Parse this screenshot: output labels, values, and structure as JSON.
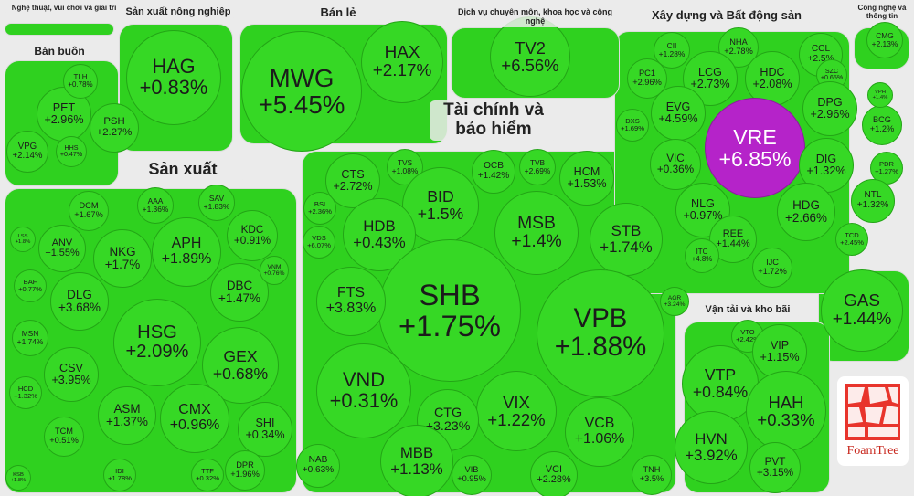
{
  "groups": [
    {
      "name": "Nghệ thuật, vui chơi và giải trí",
      "cells": []
    },
    {
      "name": "Sản xuất nông nghiệp",
      "cells": [
        {
          "ticker": "HAG",
          "change": "+0.83%"
        }
      ]
    },
    {
      "name": "Bán lẻ",
      "cells": [
        {
          "ticker": "MWG",
          "change": "+5.45%"
        },
        {
          "ticker": "HAX",
          "change": "+2.17%"
        }
      ]
    },
    {
      "name": "Dịch vụ chuyên môn, khoa học và công nghệ",
      "cells": [
        {
          "ticker": "TV2",
          "change": "+6.56%"
        }
      ]
    },
    {
      "name": "Xây dựng và Bất động sản",
      "cells": [
        {
          "ticker": "CII",
          "change": "+1.28%"
        },
        {
          "ticker": "NHA",
          "change": "+2.78%"
        },
        {
          "ticker": "PC1",
          "change": "+2.96%"
        },
        {
          "ticker": "LCG",
          "change": "+2.73%"
        },
        {
          "ticker": "HDC",
          "change": "+2.08%"
        },
        {
          "ticker": "CCL",
          "change": "+2.5%"
        },
        {
          "ticker": "SZC",
          "change": "+0.65%"
        },
        {
          "ticker": "EVG",
          "change": "+4.59%"
        },
        {
          "ticker": "DXS",
          "change": "+1.69%"
        },
        {
          "ticker": "DPG",
          "change": "+2.96%"
        },
        {
          "ticker": "VRE",
          "change": "+6.85%",
          "color": "#b523c9"
        },
        {
          "ticker": "BCG",
          "change": "+1.2%"
        },
        {
          "ticker": "VIC",
          "change": "+0.36%"
        },
        {
          "ticker": "DIG",
          "change": "+1.32%"
        },
        {
          "ticker": "PDR",
          "change": "+1.27%"
        },
        {
          "ticker": "NLG",
          "change": "+0.97%"
        },
        {
          "ticker": "HDG",
          "change": "+2.66%"
        },
        {
          "ticker": "NTL",
          "change": "+1.32%"
        },
        {
          "ticker": "REE",
          "change": "+1.44%"
        },
        {
          "ticker": "TCD",
          "change": "+2.45%"
        },
        {
          "ticker": "ITC",
          "change": "+4.8%"
        },
        {
          "ticker": "IJC",
          "change": "+1.72%"
        },
        {
          "ticker": "VPH",
          "change": "+1.4%"
        }
      ]
    },
    {
      "name": "Công nghệ và thông tin",
      "cells": [
        {
          "ticker": "CMG",
          "change": "+2.13%"
        }
      ]
    },
    {
      "name": "Bán buôn",
      "cells": [
        {
          "ticker": "PET",
          "change": "+2.96%"
        },
        {
          "ticker": "TLH",
          "change": "+0.78%"
        },
        {
          "ticker": "PSH",
          "change": "+2.27%"
        },
        {
          "ticker": "VPG",
          "change": "+2.14%"
        },
        {
          "ticker": "HHS",
          "change": "+0.47%"
        }
      ]
    },
    {
      "name": "Sản xuất",
      "cells": [
        {
          "ticker": "DCM",
          "change": "+1.67%"
        },
        {
          "ticker": "AAA",
          "change": "+1.36%"
        },
        {
          "ticker": "SAV",
          "change": "+1.83%"
        },
        {
          "ticker": "ANV",
          "change": "+1.55%"
        },
        {
          "ticker": "NKG",
          "change": "+1.7%"
        },
        {
          "ticker": "APH",
          "change": "+1.89%"
        },
        {
          "ticker": "KDC",
          "change": "+0.91%"
        },
        {
          "ticker": "BAF",
          "change": "+0.77%"
        },
        {
          "ticker": "DLG",
          "change": "+3.68%"
        },
        {
          "ticker": "DBC",
          "change": "+1.47%"
        },
        {
          "ticker": "VNM",
          "change": "+0.76%"
        },
        {
          "ticker": "HSG",
          "change": "+2.09%"
        },
        {
          "ticker": "MSN",
          "change": "+1.74%"
        },
        {
          "ticker": "CSV",
          "change": "+3.95%"
        },
        {
          "ticker": "GEX",
          "change": "+0.68%"
        },
        {
          "ticker": "HCD",
          "change": "+1.32%"
        },
        {
          "ticker": "ASM",
          "change": "+1.37%"
        },
        {
          "ticker": "CMX",
          "change": "+0.96%"
        },
        {
          "ticker": "SHI",
          "change": "+0.34%"
        },
        {
          "ticker": "TCM",
          "change": "+0.51%"
        },
        {
          "ticker": "KSB",
          "change": "+1.8%"
        },
        {
          "ticker": "IDI",
          "change": "+1.78%"
        },
        {
          "ticker": "TTF",
          "change": "+0.32%"
        },
        {
          "ticker": "DPR",
          "change": "+1.96%"
        },
        {
          "ticker": "LSS",
          "change": "+1.8%"
        }
      ]
    },
    {
      "name": "Tài chính và bảo hiểm",
      "cells": [
        {
          "ticker": "CTS",
          "change": "+2.72%"
        },
        {
          "ticker": "BSI",
          "change": "+2.36%"
        },
        {
          "ticker": "TVS",
          "change": "+1.08%"
        },
        {
          "ticker": "OCB",
          "change": "+1.42%"
        },
        {
          "ticker": "TVB",
          "change": "+2.69%"
        },
        {
          "ticker": "HCM",
          "change": "+1.53%"
        },
        {
          "ticker": "BID",
          "change": "+1.5%"
        },
        {
          "ticker": "HDB",
          "change": "+0.43%"
        },
        {
          "ticker": "MSB",
          "change": "+1.4%"
        },
        {
          "ticker": "STB",
          "change": "+1.74%"
        },
        {
          "ticker": "VDS",
          "change": "+6.07%"
        },
        {
          "ticker": "SHB",
          "change": "+1.75%"
        },
        {
          "ticker": "VPB",
          "change": "+1.88%"
        },
        {
          "ticker": "FTS",
          "change": "+3.83%"
        },
        {
          "ticker": "AGR",
          "change": "+3.24%"
        },
        {
          "ticker": "VND",
          "change": "+0.31%"
        },
        {
          "ticker": "VIX",
          "change": "+1.22%"
        },
        {
          "ticker": "CTG",
          "change": "+3.23%"
        },
        {
          "ticker": "VCB",
          "change": "+1.06%"
        },
        {
          "ticker": "NAB",
          "change": "+0.63%"
        },
        {
          "ticker": "MBB",
          "change": "+1.13%"
        },
        {
          "ticker": "VIB",
          "change": "+0.95%"
        },
        {
          "ticker": "VCI",
          "change": "+2.28%"
        },
        {
          "ticker": "TNH",
          "change": "+3.5%"
        }
      ]
    },
    {
      "name": "Vận tải và kho bãi",
      "cells": [
        {
          "ticker": "VTO",
          "change": "+2.42%"
        },
        {
          "ticker": "VIP",
          "change": "+1.15%"
        },
        {
          "ticker": "VTP",
          "change": "+0.84%"
        },
        {
          "ticker": "HAH",
          "change": "+0.33%"
        },
        {
          "ticker": "HVN",
          "change": "+3.92%"
        },
        {
          "ticker": "PVT",
          "change": "+3.15%"
        }
      ]
    },
    {
      "name": null,
      "cells": [
        {
          "ticker": "GAS",
          "change": "+1.44%"
        }
      ]
    }
  ],
  "logo": "FoamTree"
}
